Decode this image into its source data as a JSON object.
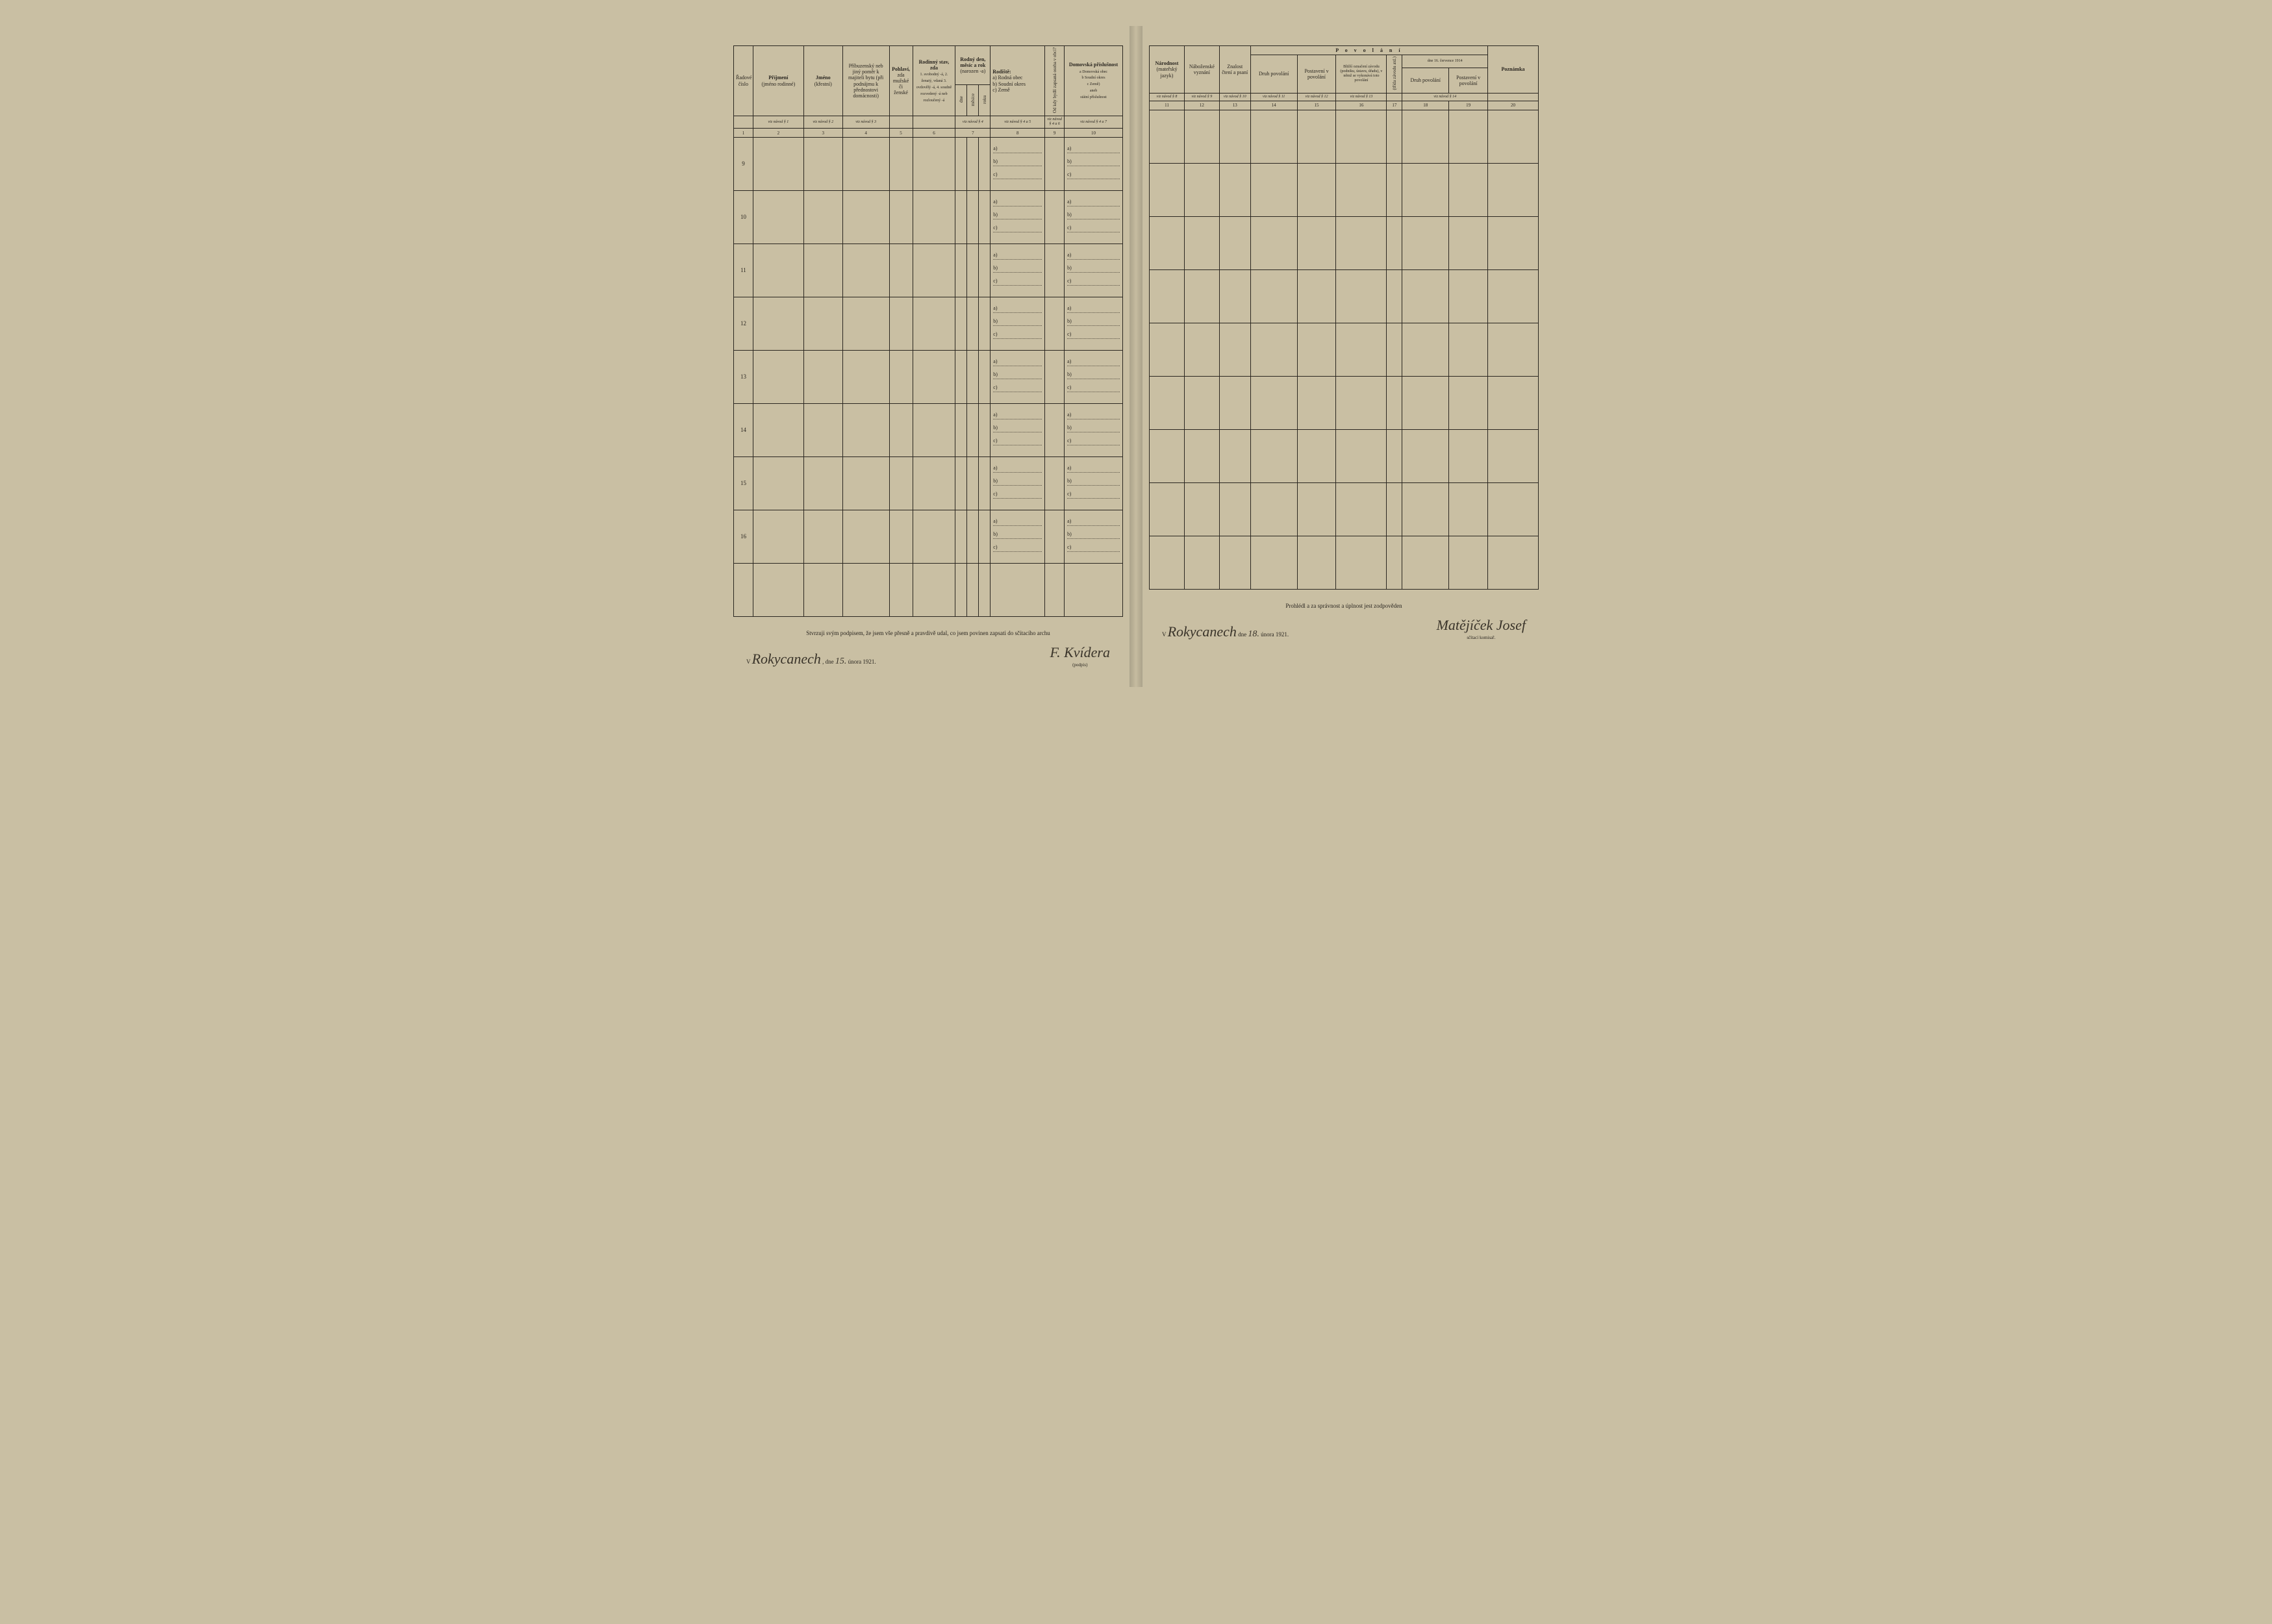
{
  "left": {
    "headers": {
      "col1": "Řadové číslo",
      "col2": {
        "top": "Příjmení",
        "bottom": "(jméno rodinné)"
      },
      "col3": {
        "top": "Jméno",
        "bottom": "(křestní)"
      },
      "col4": "Příbuzenský neb jiný poměr k majiteli bytu (při podnájmu k přednostovi domácnosti)",
      "col5": {
        "top": "Pohlaví,",
        "mid": "zda mužské či ženské"
      },
      "col6": {
        "top": "Rodinný stav, zda",
        "body": "1. svobodný -á, 2. ženatý, vdaná 3. ovdovělý -á, 4. soudně rozvedený -á neb rozloučený -á"
      },
      "col7": {
        "top": "Rodný den, měsíc a rok",
        "sub": "(narozen -a)",
        "c1": "dne",
        "c2": "měsíce",
        "c3": "roku"
      },
      "col8": {
        "top": "Rodiště:",
        "body": "a) Rodná obec\nb) Soudní okres\nc) Země"
      },
      "col9": "Od kdy bydlí zapsaná osoba v obci?",
      "col10": {
        "top": "Domovská příslušnost",
        "body": "a Domovská obec\nb Soudní okres\nc Země)\naneb\nstátní příslušnost"
      }
    },
    "hints": {
      "h1": "viz návod § 1",
      "h2": "viz návod § 2",
      "h3": "viz návod § 3",
      "h4": "viz návod § 4",
      "h5": "viz návod § 4 a 5",
      "h6": "viz návod § 4 a 6",
      "h7": "viz návod § 4 a 7"
    },
    "colnums": {
      "n1": "1",
      "n2": "2",
      "n3": "3",
      "n4": "4",
      "n5": "5",
      "n6": "6",
      "n7": "7",
      "n8": "8",
      "n9": "9",
      "n10": "10"
    },
    "rows": [
      "9",
      "10",
      "11",
      "12",
      "13",
      "14",
      "15",
      "16"
    ],
    "sublabels": {
      "a": "a)",
      "b": "b)",
      "c": "c)"
    },
    "footer": {
      "attest": "Stvrzuji svým podpisem, že jsem vše přesně a pravdivě udal, co jsem povinen zapsati do sčítacího archu",
      "place_prefix": "V",
      "place_hw": "Rokycanech",
      "date_prefix": ", dne",
      "date_day_hw": "15.",
      "date_month": "února 1921.",
      "signature_hw": "F. Kvídera",
      "sig_label": "(podpis)"
    }
  },
  "right": {
    "headers": {
      "col11": {
        "top": "Národnost",
        "sub": "(mateřský jazyk)"
      },
      "col12": "Náboženské vyznání",
      "col13": "Znalost čtení a psaní",
      "povolani": "P o v o l á n í",
      "col14": "Druh povolání",
      "col15": "Postavení v povolání",
      "col16": "Bližší označení závodu (podniku, ústavu, úřadu), v němž se vykonává toto povolání",
      "col17_vert": "(třída závodu atd.)",
      "sub1914": "dne 16. července 1914",
      "col18": "Druh povolání",
      "col19": "Postavení v povolání",
      "col20": "Poznámka"
    },
    "hints": {
      "h8": "viz návod § 8",
      "h9": "viz návod § 9",
      "h10": "viz návod § 10",
      "h11": "viz návod § 11",
      "h12": "viz návod § 12",
      "h13": "viz návod § 13",
      "h14": "viz návod § 14"
    },
    "colnums": {
      "n11": "11",
      "n12": "12",
      "n13": "13",
      "n14": "14",
      "n15": "15",
      "n16": "16",
      "n17": "17",
      "n18": "18",
      "n19": "19",
      "n20": "20"
    },
    "rowcount": 8,
    "footer": {
      "attest": "Prohlédl a za správnost a úplnost jest zodpověden",
      "place_prefix": "V",
      "place_hw": "Rokycanech",
      "date_prefix": "dne",
      "date_day_hw": "18.",
      "date_month": "února 1921.",
      "signature_hw": "Matějíček Josef",
      "sig_label": "sčítací komisař."
    }
  },
  "style": {
    "paper_bg": "#c9bfa3",
    "ink": "#2a2620",
    "dotted": "#5a5346",
    "hw_color": "#3a342a"
  }
}
